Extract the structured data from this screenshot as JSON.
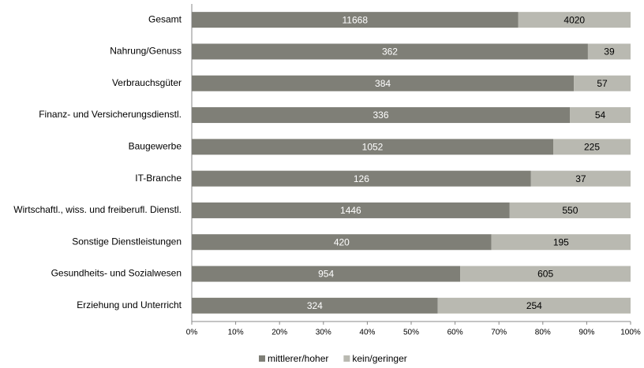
{
  "chart_data": {
    "type": "bar",
    "orientation": "horizontal",
    "stacked": "percent",
    "categories": [
      "Gesamt",
      "Nahrung/Genuss",
      "Verbrauchsgüter",
      "Finanz- und Versicherungsdienstl.",
      "Baugewerbe",
      "IT-Branche",
      "Wirtschaftl., wiss. und freiberufl. Dienstl.",
      "Sonstige Dienstleistungen",
      "Gesundheits- und Sozialwesen",
      "Erziehung und Unterricht"
    ],
    "series": [
      {
        "name": "mittlerer/hoher",
        "color": "#7f7f77",
        "label_color": "#ffffff",
        "values": [
          11668,
          362,
          384,
          336,
          1052,
          126,
          1446,
          420,
          954,
          324
        ]
      },
      {
        "name": "kein/geringer",
        "color": "#b9b9b1",
        "label_color": "#000000",
        "values": [
          4020,
          39,
          57,
          54,
          225,
          37,
          550,
          195,
          605,
          254
        ]
      }
    ],
    "xlim": [
      0,
      100
    ],
    "xticks": [
      {
        "value": 0,
        "label": "0%"
      },
      {
        "value": 10,
        "label": "10%"
      },
      {
        "value": 20,
        "label": "20%"
      },
      {
        "value": 30,
        "label": "30%"
      },
      {
        "value": 40,
        "label": "40%"
      },
      {
        "value": 50,
        "label": "50%"
      },
      {
        "value": 60,
        "label": "60%"
      },
      {
        "value": 70,
        "label": "70%"
      },
      {
        "value": 80,
        "label": "80%"
      },
      {
        "value": 90,
        "label": "90%"
      },
      {
        "value": 100,
        "label": "100%"
      }
    ],
    "legend": "bottom"
  }
}
